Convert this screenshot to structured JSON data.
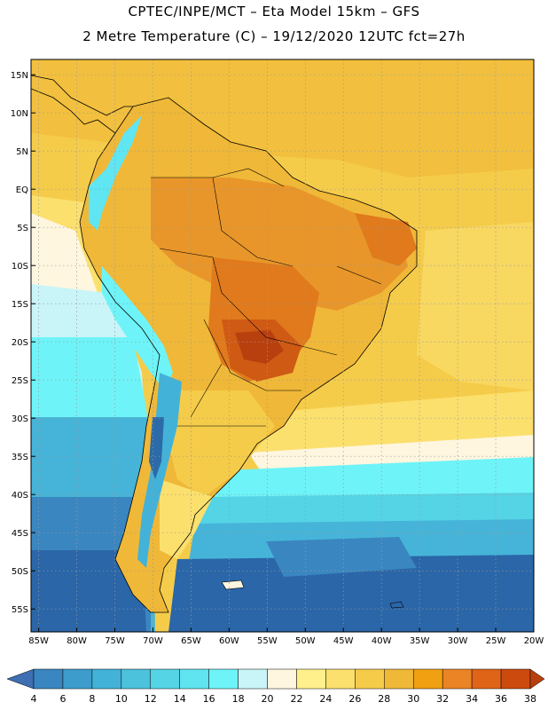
{
  "header": {
    "line1": "CPTEC/INPE/MCT –  Eta Model 15km – GFS",
    "line2": "2 Metre Temperature (C) – 19/12/2020 12UTC fct=27h"
  },
  "map": {
    "lat_labels": [
      "15N",
      "10N",
      "5N",
      "EQ",
      "5S",
      "10S",
      "15S",
      "20S",
      "25S",
      "30S",
      "35S",
      "40S",
      "45S",
      "50S",
      "55S"
    ],
    "lat_values": [
      15,
      10,
      5,
      0,
      -5,
      -10,
      -15,
      -20,
      -25,
      -30,
      -35,
      -40,
      -45,
      -50,
      -55
    ],
    "lon_labels": [
      "85W",
      "80W",
      "75W",
      "70W",
      "65W",
      "60W",
      "55W",
      "50W",
      "45W",
      "40W",
      "35W",
      "30W",
      "25W",
      "20W"
    ],
    "lon_values": [
      -85,
      -80,
      -75,
      -70,
      -65,
      -60,
      -55,
      -50,
      -45,
      -40,
      -35,
      -30,
      -25,
      -20
    ],
    "lat_range": [
      -58,
      17
    ],
    "lon_range": [
      -86,
      -20
    ],
    "colors": {
      "ocean_warm": "#f5cc4a",
      "land_hot": "#e08a22",
      "land_very_hot": "#cf5a14",
      "land_extreme": "#b8400f",
      "andes_cool": "#5fe6f2",
      "andes_cold": "#2c9ed0",
      "ocean_cold": "#2a66a8",
      "ocean_mid": "#46b4d8",
      "ocean_cyan": "#60e6f0"
    }
  },
  "colorbar": {
    "labels": [
      "4",
      "6",
      "8",
      "10",
      "12",
      "14",
      "16",
      "18",
      "20",
      "22",
      "24",
      "26",
      "28",
      "30",
      "32",
      "34",
      "36",
      "38"
    ],
    "colors": [
      "#3e6fb2",
      "#3a86c0",
      "#3d9ccc",
      "#43b2d8",
      "#4cc2dc",
      "#55d4e6",
      "#5fe4f0",
      "#6ef4f8",
      "#c9f4f8",
      "#fff6e0",
      "#fff08c",
      "#fbe06e",
      "#f5cc4a",
      "#f0b838",
      "#f0a010",
      "#ea8424",
      "#e06418",
      "#cc4a0e",
      "#b8400e"
    ]
  }
}
